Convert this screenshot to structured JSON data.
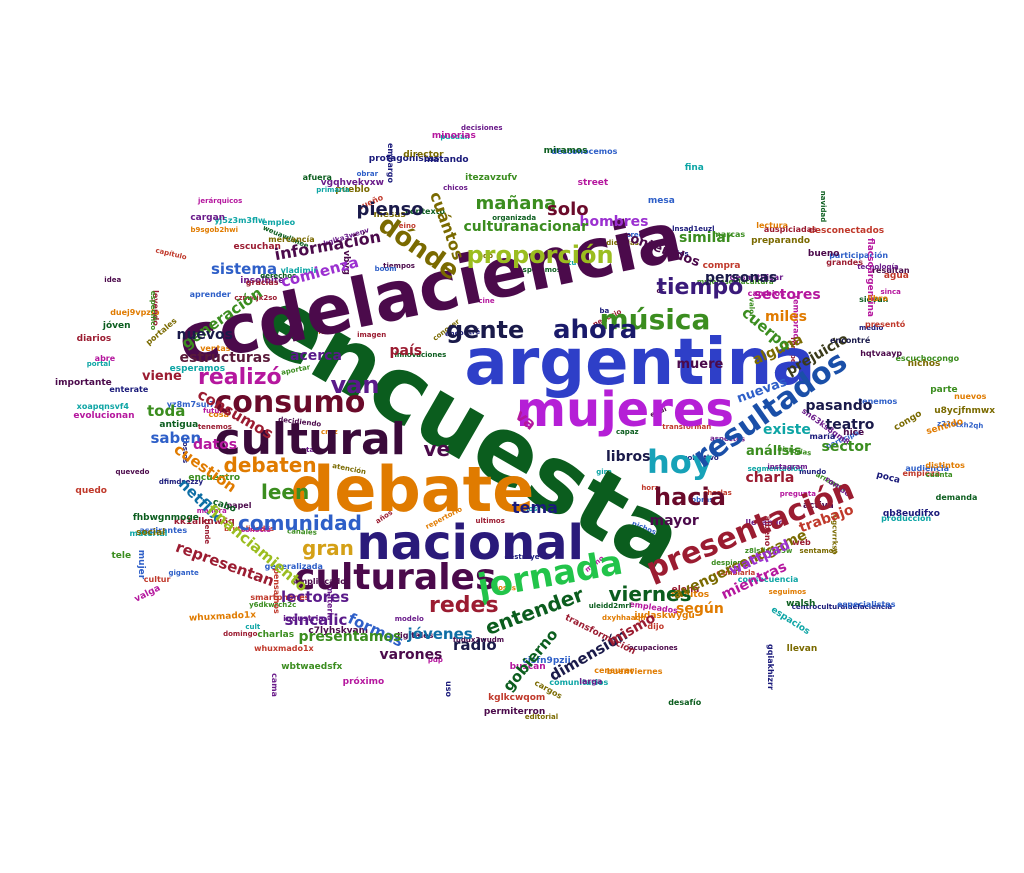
{
  "palette": [
    "#2e5fc8",
    "#3b8d1f",
    "#6a1b8a",
    "#e07b00",
    "#b5179e",
    "#0b5d1e",
    "#4b0a4b",
    "#1a1a7a",
    "#9b1c31",
    "#0ea5a5",
    "#7a6a00",
    "#c0392b"
  ],
  "featured_words": [
    {
      "text": "encuesta",
      "color": "#0b5d1e"
    },
    {
      "text": "ccdelaciencia",
      "color": "#4b0a4b"
    },
    {
      "text": "argentina",
      "color": "#2e3fc8"
    },
    {
      "text": "debate",
      "color": "#e07b00"
    },
    {
      "text": "mujeres",
      "color": "#b51fd6"
    },
    {
      "text": "nacional",
      "color": "#2a1a7a"
    },
    {
      "text": "cultural",
      "color": "#3a0a3a"
    },
    {
      "text": "culturales",
      "color": "#4b0a4b"
    },
    {
      "text": "jornada",
      "color": "#22c44a"
    },
    {
      "text": "hoy",
      "color": "#17a2b8"
    },
    {
      "text": "resultados",
      "color": "#1a4fa8"
    },
    {
      "text": "presentación",
      "color": "#9b1c31"
    },
    {
      "text": "consumo",
      "color": "#6a0a2a"
    },
    {
      "text": "música",
      "color": "#3b8d1f"
    },
    {
      "text": "ahora",
      "color": "#1a1a6a"
    },
    {
      "text": "proporción",
      "color": "#9bbd1f"
    },
    {
      "text": "dónde",
      "color": "#7a6a00"
    },
    {
      "text": "van",
      "color": "#5a1a8a"
    },
    {
      "text": "hacia",
      "color": "#6a0a2a"
    },
    {
      "text": "gente",
      "color": "#1a1a4a"
    },
    {
      "text": "tiempo",
      "color": "#3a1a7a"
    },
    {
      "text": "realizó",
      "color": "#b5179e"
    },
    {
      "text": "comunidad",
      "color": "#2e5fc8"
    },
    {
      "text": "leen",
      "color": "#3b8d1f"
    },
    {
      "text": "debaten",
      "color": "#e07b00"
    },
    {
      "text": "redes",
      "color": "#9b1c31"
    },
    {
      "text": "entender",
      "color": "#0b5d1e"
    },
    {
      "text": "viernes",
      "color": "#0b5d1e"
    },
    {
      "text": "gran",
      "color": "#d4a017"
    },
    {
      "text": "ve",
      "color": "#4b0a4b"
    },
    {
      "text": "tema",
      "color": "#1a1a7a"
    },
    {
      "text": "va",
      "color": "#b5179e"
    },
    {
      "text": "pienso",
      "color": "#1a1a4a"
    },
    {
      "text": "mañana",
      "color": "#3b8d1f"
    },
    {
      "text": "solo",
      "color": "#6a0a2a"
    },
    {
      "text": "cuántos",
      "color": "#7a6a00"
    },
    {
      "text": "información",
      "color": "#4b0a4b"
    },
    {
      "text": "comienza",
      "color": "#9b30d0"
    },
    {
      "text": "sistema",
      "color": "#2e5fc8"
    },
    {
      "text": "generación",
      "color": "#3b8d1f"
    },
    {
      "text": "nuevos",
      "color": "#1a1a4a"
    },
    {
      "text": "estructuras",
      "color": "#5a1a3a"
    },
    {
      "text": "país",
      "color": "#9b1c31"
    },
    {
      "text": "acerca",
      "color": "#5a1a8a"
    },
    {
      "text": "viene",
      "color": "#9b1c31"
    },
    {
      "text": "toda",
      "color": "#3b8d1f"
    },
    {
      "text": "consumos",
      "color": "#9b1c31"
    },
    {
      "text": "saben",
      "color": "#2e5fc8"
    },
    {
      "text": "datos",
      "color": "#b5179e"
    },
    {
      "text": "cuestión",
      "color": "#e07b00"
    },
    {
      "text": "netflix",
      "color": "#0e6ea5"
    },
    {
      "text": "financiamiento",
      "color": "#9bbd1f"
    },
    {
      "text": "representan",
      "color": "#9b1c31"
    },
    {
      "text": "lectores",
      "color": "#5a1a8a"
    },
    {
      "text": "formas",
      "color": "#2e5fc8"
    },
    {
      "text": "sincalic",
      "color": "#5a1a8a"
    },
    {
      "text": "presentamos",
      "color": "#3b8d1f"
    },
    {
      "text": "jóvenes",
      "color": "#0e6ea5"
    },
    {
      "text": "varones",
      "color": "#4b0a4b"
    },
    {
      "text": "radio",
      "color": "#1a1a4a"
    },
    {
      "text": "gobierno",
      "color": "#0b5d1e"
    },
    {
      "text": "dimensión",
      "color": "#1a1a4a"
    },
    {
      "text": "mismo",
      "color": "#9b1c31"
    },
    {
      "text": "según",
      "color": "#e07b00"
    },
    {
      "text": "avengersendgame",
      "color": "#7a6a00"
    },
    {
      "text": "mientras",
      "color": "#b5179e"
    },
    {
      "text": "wattpad",
      "color": "#9b30d0"
    },
    {
      "text": "trabajo",
      "color": "#c0392b"
    },
    {
      "text": "charla",
      "color": "#9b1c31"
    },
    {
      "text": "mayor",
      "color": "#4b0a4b"
    },
    {
      "text": "libros",
      "color": "#1a1a4a"
    },
    {
      "text": "sector",
      "color": "#3b8d1f"
    },
    {
      "text": "teatro",
      "color": "#1a1a4a"
    },
    {
      "text": "análisis",
      "color": "#3b8d1f"
    },
    {
      "text": "existe",
      "color": "#0ea5a5"
    },
    {
      "text": "pasando",
      "color": "#1a1a4a"
    },
    {
      "text": "nuevas",
      "color": "#2e5fc8"
    },
    {
      "text": "alguna",
      "color": "#7a6a00"
    },
    {
      "text": "prejuicio",
      "color": "#3a3a1a"
    },
    {
      "text": "cuerpo",
      "color": "#3b8d1f"
    },
    {
      "text": "muere",
      "color": "#4b0a4b"
    },
    {
      "text": "miles",
      "color": "#e07b00"
    },
    {
      "text": "sectores",
      "color": "#b5179e"
    },
    {
      "text": "personas",
      "color": "#1a1a4a"
    },
    {
      "text": "similar",
      "color": "#3b8d1f"
    },
    {
      "text": "contenidos",
      "color": "#4b0a4b"
    },
    {
      "text": "hombres",
      "color": "#9b30d0"
    },
    {
      "text": "culturanacionar",
      "color": "#3b8d1f"
    },
    {
      "text": "encontré",
      "color": "#1a1a4a"
    },
    {
      "text": "presentó",
      "color": "#c0392b"
    }
  ],
  "small_words": [
    "z226txh2qh",
    "wbtwaedsfx",
    "vgqhvekvxw",
    "whuxmado1x",
    "sinca",
    "sievan",
    "resultan",
    "lnsad1euzl",
    "kk1alknw6q",
    "puedan",
    "portales",
    "smartphones",
    "yz8m7sui7u",
    "y6dkwrch2c",
    "insolbite",
    "lectura",
    "evolucionan",
    "contexto",
    "c7lyhskyam",
    "centroculturaldelaciencia",
    "elena",
    "vladimir",
    "llevan",
    "desconectados",
    "participar",
    "itezavzufv",
    "desmitificar",
    "seguimos",
    "jerárquicos",
    "desafío",
    "fuddx2wudm",
    "qb8eudifxo",
    "tenemos",
    "espacios",
    "u8ycjfnmwx",
    "kglkcwqom",
    "cisfn9pzii",
    "charlas",
    "chicos",
    "nuevos",
    "temporada",
    "jóven",
    "ocupaciones",
    "enterate",
    "domingo",
    "esperamos",
    "cargos",
    "agua",
    "audiencia",
    "valor",
    "llevando",
    "dxyhhaaqh",
    "buscan",
    "afuera",
    "activa",
    "gqiakhizrr",
    "czmwjk2so",
    "empleo",
    "fygcvrrksp",
    "brutalidades",
    "desconocemos",
    "escuchocongo",
    "industria",
    "duej9vpzip",
    "minorias",
    "fhbwgnmoge",
    "simplificados",
    "protagonistas",
    "transformación",
    "yj5z3m3flw",
    "preparando",
    "sueño",
    "participación",
    "mujeresenlacultura",
    "sn63ks8qm8",
    "judaskwygu",
    "empleados",
    "organizada",
    "hqtvaayp",
    "embargo",
    "gracias",
    "comunitarios",
    "editorial",
    "cultur",
    "especialistas",
    "tele",
    "tecnología",
    "minutos",
    "pregunta",
    "navidad",
    "quevedo",
    "costos",
    "escuchan",
    "xoapqnsvf4",
    "nichos",
    "capítulo",
    "aspirantes",
    "despierta",
    "materia",
    "sentido",
    "valga",
    "weuawlimee",
    "permiterron",
    "dfimdsezzy",
    "auspiciadas",
    "fina",
    "mesas",
    "compra",
    "mesa",
    "arrancar",
    "cargan",
    "censurar",
    "abre",
    "antigua",
    "digitales",
    "medio",
    "leyendo",
    "consecuencia",
    "mercancía",
    "cambiarla",
    "generalizada",
    "encuentro",
    "modelo",
    "buenviernes",
    "street",
    "walsh",
    "idea",
    "mundo",
    "grandes",
    "portal",
    "pueblo",
    "empieza",
    "obrar",
    "parte",
    "larga",
    "distintos",
    "próximo",
    "derechos",
    "papel",
    "radios",
    "tiende",
    "material",
    "social",
    "quedo",
    "gigante",
    "cuánta",
    "kgika3wenv",
    "b9sgob2hwi",
    "flacsoargentina",
    "demanda",
    "importante",
    "maría",
    "web",
    "primaría",
    "congo",
    "whuxmado1x",
    "tenemos",
    "z8lsdwsb5w",
    "cama",
    "cosa",
    "manera",
    "cabo",
    "bueno",
    "uso",
    "albeno",
    "cult",
    "director",
    "dijo",
    "aprender",
    "marcas",
    "decisiones",
    "libro",
    "cambios",
    "miramos",
    "hice",
    "poca",
    "diarios",
    "producción",
    "sentamos",
    "pensamos",
    "mujer",
    "específico",
    "rompe",
    "ventas",
    "pdp",
    "uleidd2mrl",
    "vbyg",
    "matando",
    "rgrapes"
  ],
  "overlay_words": [
    "repertorio",
    "futuro",
    "innovaciones",
    "tiempos",
    "encontré",
    "ultimos",
    "tu",
    "audiencias",
    "transforman",
    "boom",
    "canales",
    "aspectos",
    "cruz",
    "mano",
    "esperamos",
    "cc",
    "ba",
    "años",
    "gira",
    "conocer",
    "reino",
    "cree",
    "aportar",
    "captar",
    "adultos",
    "cine",
    "capaz",
    "equi",
    "colectivo",
    "imagen",
    "segmentación",
    "atención",
    "hora",
    "obras",
    "historias",
    "instagram",
    "cosas",
    "conoció",
    "fut",
    "decidiendo",
    "destruye",
    "negocio",
    "estamos",
    "pdp",
    "charlas",
    "nichos"
  ]
}
